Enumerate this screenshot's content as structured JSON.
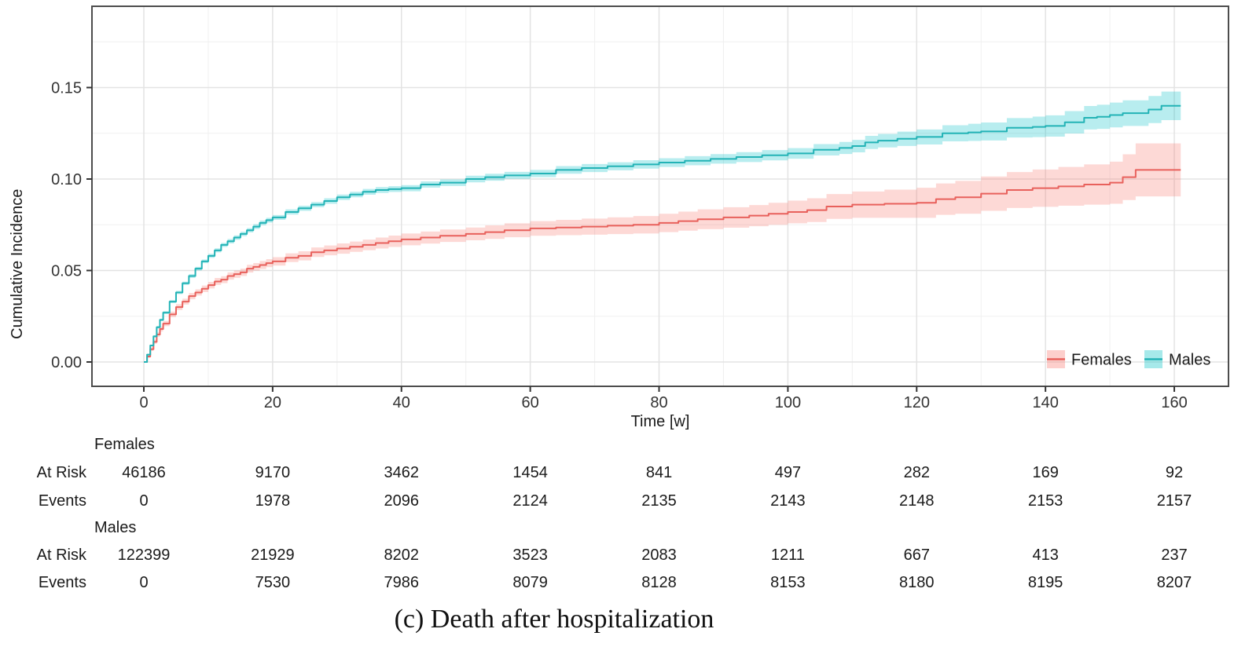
{
  "figure": {
    "caption": "(c) Death after hospitalization"
  },
  "chart_data": {
    "type": "line",
    "title": "",
    "xlabel": "Time [w]",
    "ylabel": "Cumulative Incidence",
    "xlim": [
      -8,
      168.5
    ],
    "ylim": [
      0,
      0.1945
    ],
    "xticks": [
      0,
      20,
      40,
      60,
      80,
      100,
      120,
      140,
      160
    ],
    "yticks": [
      0,
      0.05,
      0.1,
      0.15
    ],
    "ytick_labels": [
      "0.00",
      "0.05",
      "0.10",
      "0.15"
    ],
    "grid": "major+minor on, white panel, light gray lines",
    "legend_position": "inside bottom-right",
    "colors": {
      "females_line": "#E8615C",
      "females_band": "#F8766D",
      "males_line": "#23B3B6",
      "males_band": "#00BFC4",
      "band_opacity": 0.28,
      "grid_major": "#E3E3E3",
      "grid_minor": "#F0F0F0",
      "panel_border": "#4D4D4D",
      "tick_text": "#333333"
    },
    "series": [
      {
        "name": "Females",
        "line_color": "#E8615C",
        "band_color": "#F8766D",
        "t": [
          0,
          0.5,
          1,
          1.5,
          2,
          2.5,
          3,
          4,
          5,
          6,
          7,
          8,
          9,
          10,
          11,
          12,
          13,
          14,
          15,
          16,
          17,
          18,
          19,
          20,
          22,
          24,
          26,
          28,
          30,
          32,
          34,
          36,
          38,
          40,
          43,
          46,
          50,
          53,
          56,
          60,
          64,
          68,
          72,
          76,
          80,
          83,
          86,
          90,
          94,
          97,
          100,
          103,
          106,
          110,
          115,
          120,
          123,
          126,
          130,
          134,
          138,
          142,
          146,
          150,
          152,
          154,
          161
        ],
        "v": [
          0,
          0.003,
          0.007,
          0.011,
          0.015,
          0.018,
          0.021,
          0.026,
          0.03,
          0.033,
          0.036,
          0.038,
          0.04,
          0.042,
          0.044,
          0.045,
          0.047,
          0.048,
          0.049,
          0.051,
          0.052,
          0.053,
          0.054,
          0.055,
          0.057,
          0.058,
          0.06,
          0.061,
          0.062,
          0.063,
          0.064,
          0.065,
          0.066,
          0.067,
          0.068,
          0.069,
          0.07,
          0.071,
          0.072,
          0.073,
          0.0735,
          0.074,
          0.0745,
          0.075,
          0.076,
          0.077,
          0.078,
          0.079,
          0.08,
          0.081,
          0.082,
          0.083,
          0.085,
          0.086,
          0.0865,
          0.087,
          0.089,
          0.09,
          0.092,
          0.094,
          0.095,
          0.096,
          0.097,
          0.098,
          0.101,
          0.105,
          0.105
        ],
        "ci": [
          0,
          0.0008,
          0.001,
          0.0011,
          0.0012,
          0.0013,
          0.0014,
          0.0015,
          0.0016,
          0.0016,
          0.0017,
          0.0017,
          0.0018,
          0.0018,
          0.0019,
          0.0019,
          0.002,
          0.002,
          0.002,
          0.0021,
          0.0021,
          0.0022,
          0.0022,
          0.0023,
          0.0024,
          0.0025,
          0.0026,
          0.0027,
          0.0028,
          0.0028,
          0.0029,
          0.003,
          0.0031,
          0.0032,
          0.0033,
          0.0034,
          0.0035,
          0.0037,
          0.0038,
          0.004,
          0.0042,
          0.0044,
          0.0046,
          0.0048,
          0.005,
          0.0052,
          0.0054,
          0.0056,
          0.0058,
          0.006,
          0.0062,
          0.0065,
          0.0068,
          0.0072,
          0.0077,
          0.0082,
          0.0086,
          0.009,
          0.0094,
          0.0098,
          0.0102,
          0.0106,
          0.011,
          0.0115,
          0.0125,
          0.0145,
          0.0148
        ]
      },
      {
        "name": "Males",
        "line_color": "#23B3B6",
        "band_color": "#00BFC4",
        "t": [
          0,
          0.5,
          1,
          1.5,
          2,
          2.5,
          3,
          4,
          5,
          6,
          7,
          8,
          9,
          10,
          11,
          12,
          13,
          14,
          15,
          16,
          17,
          18,
          19,
          20,
          22,
          24,
          26,
          28,
          30,
          32,
          34,
          36,
          38,
          40,
          43,
          46,
          50,
          53,
          56,
          60,
          64,
          68,
          72,
          76,
          80,
          84,
          88,
          92,
          96,
          100,
          104,
          108,
          110,
          112,
          114,
          117,
          120,
          124,
          128,
          130,
          134,
          138,
          140,
          143,
          146,
          148,
          150,
          152,
          156,
          158,
          161
        ],
        "v": [
          0,
          0.004,
          0.009,
          0.014,
          0.019,
          0.023,
          0.027,
          0.033,
          0.038,
          0.043,
          0.047,
          0.051,
          0.055,
          0.058,
          0.061,
          0.064,
          0.066,
          0.068,
          0.07,
          0.072,
          0.074,
          0.076,
          0.0775,
          0.079,
          0.082,
          0.084,
          0.086,
          0.088,
          0.09,
          0.0915,
          0.093,
          0.094,
          0.0945,
          0.095,
          0.097,
          0.098,
          0.1,
          0.101,
          0.102,
          0.103,
          0.105,
          0.106,
          0.107,
          0.108,
          0.109,
          0.11,
          0.111,
          0.112,
          0.113,
          0.114,
          0.116,
          0.117,
          0.118,
          0.12,
          0.121,
          0.122,
          0.123,
          0.125,
          0.1255,
          0.126,
          0.128,
          0.1285,
          0.129,
          0.131,
          0.1335,
          0.134,
          0.135,
          0.136,
          0.138,
          0.14,
          0.14
        ],
        "ci": [
          0,
          0.0004,
          0.0005,
          0.0006,
          0.0007,
          0.0007,
          0.0008,
          0.0008,
          0.0009,
          0.0009,
          0.001,
          0.001,
          0.001,
          0.0011,
          0.0011,
          0.0011,
          0.0012,
          0.0012,
          0.0012,
          0.0012,
          0.0013,
          0.0013,
          0.0013,
          0.0013,
          0.0014,
          0.0014,
          0.0014,
          0.0015,
          0.0015,
          0.0015,
          0.0016,
          0.0016,
          0.0016,
          0.0017,
          0.0017,
          0.0018,
          0.0018,
          0.0019,
          0.0019,
          0.002,
          0.0021,
          0.0022,
          0.0022,
          0.0023,
          0.0024,
          0.0025,
          0.0026,
          0.0027,
          0.0028,
          0.0029,
          0.0031,
          0.0033,
          0.0034,
          0.0036,
          0.0037,
          0.0039,
          0.0041,
          0.0044,
          0.0047,
          0.0049,
          0.0053,
          0.0056,
          0.0058,
          0.0061,
          0.0064,
          0.0066,
          0.0068,
          0.007,
          0.0074,
          0.0078,
          0.0083
        ]
      }
    ]
  },
  "legend": {
    "items": [
      {
        "label": "Females",
        "line_color": "#E8615C",
        "band_color": "#F8766D"
      },
      {
        "label": "Males",
        "line_color": "#23B3B6",
        "band_color": "#00BFC4"
      }
    ]
  },
  "risk_table": {
    "times": [
      0,
      20,
      40,
      60,
      80,
      100,
      120,
      140,
      160
    ],
    "at_risk_label": "At Risk",
    "events_label": "Events",
    "groups": [
      {
        "name": "Females",
        "at_risk": [
          "46186",
          "9170",
          "3462",
          "1454",
          "841",
          "497",
          "282",
          "169",
          "92"
        ],
        "events": [
          "0",
          "1978",
          "2096",
          "2124",
          "2135",
          "2143",
          "2148",
          "2153",
          "2157"
        ]
      },
      {
        "name": "Males",
        "at_risk": [
          "122399",
          "21929",
          "8202",
          "3523",
          "2083",
          "1211",
          "667",
          "413",
          "237"
        ],
        "events": [
          "0",
          "7530",
          "7986",
          "8079",
          "8128",
          "8153",
          "8180",
          "8195",
          "8207"
        ]
      }
    ]
  }
}
